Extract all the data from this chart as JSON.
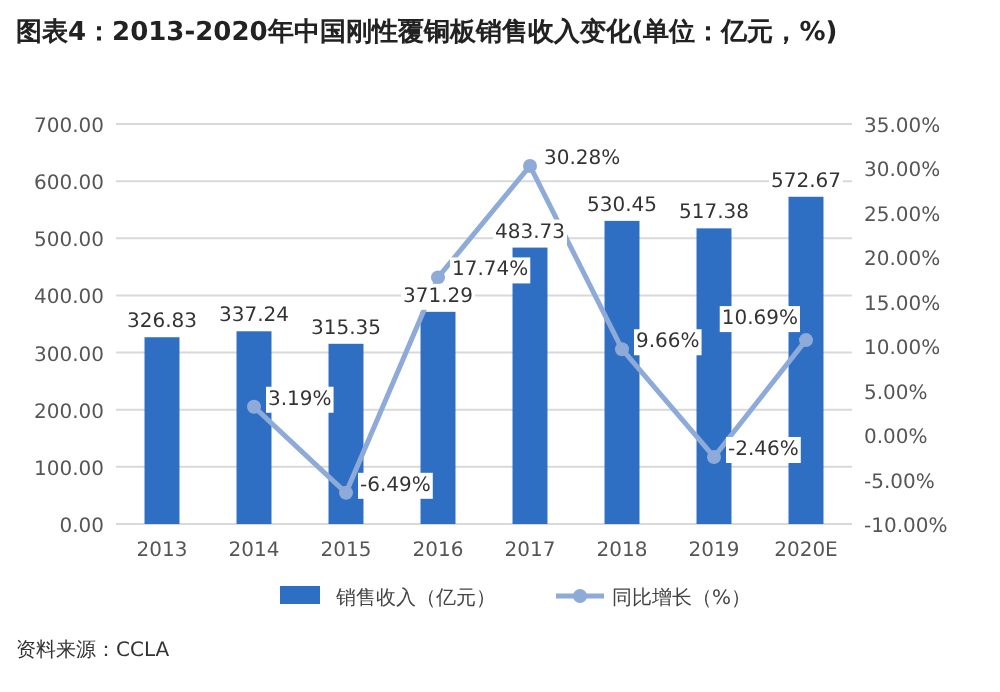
{
  "chart_data": {
    "type": "bar",
    "title": "图表4：2013-2020年中国刚性覆铜板销售收入变化(单位：亿元，%)",
    "categories": [
      "2013",
      "2014",
      "2015",
      "2016",
      "2017",
      "2018",
      "2019",
      "2020E"
    ],
    "series": [
      {
        "name": "销售收入（亿元）",
        "color": "#2e6fc4",
        "values": [
          326.83,
          337.24,
          315.35,
          371.29,
          483.73,
          530.45,
          517.38,
          572.67
        ],
        "value_labels": [
          "326.83",
          "337.24",
          "315.35",
          "371.29",
          "483.73",
          "530.45",
          "517.38",
          "572.67"
        ]
      },
      {
        "name": "同比增长（%）",
        "type": "line",
        "axis": "y2",
        "color": "#8eaad8",
        "marker": "circle",
        "values": [
          null,
          3.19,
          -6.49,
          17.74,
          30.28,
          9.66,
          -2.46,
          10.69
        ],
        "value_labels": [
          null,
          "3.19%",
          "-6.49%",
          "17.74%",
          "30.28%",
          "9.66%",
          "-2.46%",
          "10.69%"
        ]
      }
    ],
    "ylim": [
      0,
      700
    ],
    "yticks": [
      {
        "value": 0,
        "label": "0.00"
      },
      {
        "value": 100,
        "label": "100.00"
      },
      {
        "value": 200,
        "label": "200.00"
      },
      {
        "value": 300,
        "label": "300.00"
      },
      {
        "value": 400,
        "label": "400.00"
      },
      {
        "value": 500,
        "label": "500.00"
      },
      {
        "value": 600,
        "label": "600.00"
      },
      {
        "value": 700,
        "label": "700.00"
      }
    ],
    "y2lim": [
      -10,
      35
    ],
    "y2ticks": [
      {
        "value": -10,
        "label": "-10.00%"
      },
      {
        "value": -5,
        "label": "-5.00%"
      },
      {
        "value": 0,
        "label": "0.00%"
      },
      {
        "value": 5,
        "label": "5.00%"
      },
      {
        "value": 10,
        "label": "10.00%"
      },
      {
        "value": 15,
        "label": "15.00%"
      },
      {
        "value": 20,
        "label": "20.00%"
      },
      {
        "value": 25,
        "label": "25.00%"
      },
      {
        "value": 30,
        "label": "30.00%"
      },
      {
        "value": 35,
        "label": "35.00%"
      }
    ],
    "grid": "y",
    "legend": "bottom",
    "annotations": [
      "资料来源：CCLA"
    ]
  }
}
